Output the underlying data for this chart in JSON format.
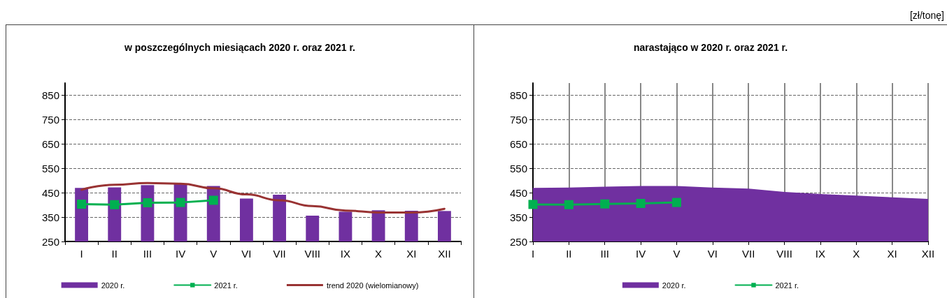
{
  "chart_data": [
    {
      "type": "bar",
      "title": "w poszczególnych miesiącach 2020 r. oraz 2021 r.",
      "categories": [
        "I",
        "II",
        "III",
        "IV",
        "V",
        "VI",
        "VII",
        "VIII",
        "IX",
        "X",
        "XI",
        "XII"
      ],
      "series": [
        {
          "name": "2020 r.",
          "type": "bar",
          "color": "#7030a0",
          "values": [
            470,
            472,
            481,
            488,
            478,
            426,
            442,
            356,
            372,
            378,
            376,
            375
          ]
        },
        {
          "name": "2021 r.",
          "type": "line",
          "color": "#00b050",
          "marker": "square",
          "values": [
            403,
            401,
            409,
            410,
            419,
            null,
            null,
            null,
            null,
            null,
            null,
            null
          ]
        },
        {
          "name": "trend 2020 (wielomianowy)",
          "type": "line",
          "color": "#993333",
          "marker": "none",
          "values": [
            462,
            483,
            490,
            487,
            468,
            443,
            419,
            395,
            377,
            369,
            369,
            384
          ]
        }
      ],
      "ylim": [
        250,
        900
      ],
      "yticks": [
        250,
        350,
        450,
        550,
        650,
        750,
        850
      ],
      "grid": "y",
      "legend": "bottom"
    },
    {
      "type": "area",
      "title": "narastająco w 2020 r. oraz 2021 r.",
      "categories": [
        "I",
        "II",
        "III",
        "IV",
        "V",
        "VI",
        "VII",
        "VIII",
        "IX",
        "X",
        "XI",
        "XII"
      ],
      "series": [
        {
          "name": "2020 r.",
          "type": "area",
          "color": "#7030a0",
          "values": [
            470,
            471,
            475,
            478,
            478,
            471,
            467,
            453,
            445,
            438,
            431,
            425
          ]
        },
        {
          "name": "2021 r.",
          "type": "line",
          "color": "#00b050",
          "marker": "square",
          "values": [
            402,
            401,
            404,
            406,
            410,
            null,
            null,
            null,
            null,
            null,
            null,
            null
          ]
        }
      ],
      "ylim": [
        250,
        900
      ],
      "yticks": [
        250,
        350,
        450,
        550,
        650,
        750,
        850
      ],
      "grid": true,
      "legend": "bottom",
      "annotations": [
        "[zł/tonę]"
      ]
    }
  ]
}
